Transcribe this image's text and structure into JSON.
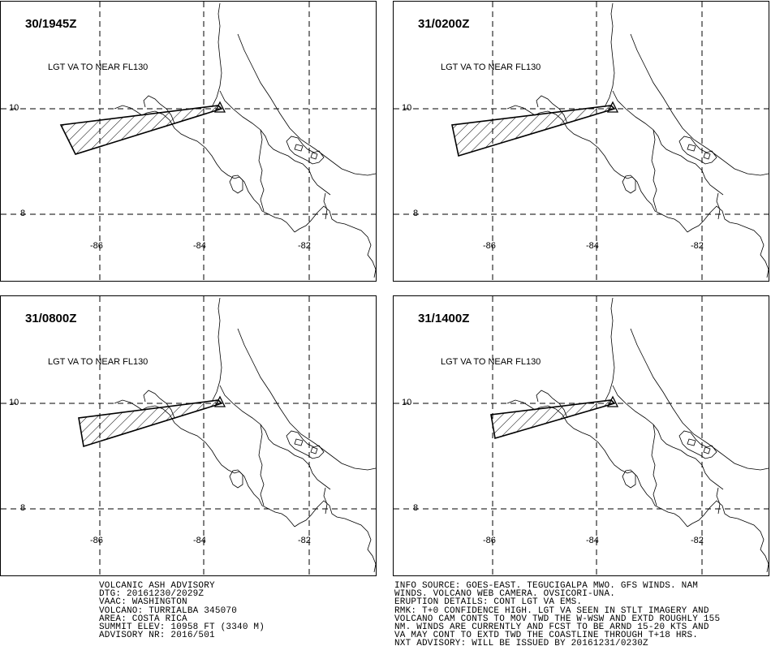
{
  "panels": [
    {
      "time": "30/1945Z",
      "va_text": "LGT VA TO NEAR FL130"
    },
    {
      "time": "31/0200Z",
      "va_text": "LGT VA TO NEAR FL130"
    },
    {
      "time": "31/0800Z",
      "va_text": "LGT VA TO NEAR FL130"
    },
    {
      "time": "31/1400Z",
      "va_text": "LGT VA TO NEAR FL130"
    }
  ],
  "axes": {
    "lat_labels": [
      "10",
      "8"
    ],
    "lon_labels": [
      "-86",
      "-84",
      "-82"
    ]
  },
  "advisory": {
    "lines": [
      "VOLCANIC ASH ADVISORY",
      "DTG: 20161230/2029Z",
      "VAAC: WASHINGTON",
      "VOLCANO: TURRIALBA 345070",
      "AREA: COSTA RICA",
      "SUMMIT ELEV: 10958 FT (3340 M)",
      "ADVISORY NR: 2016/501"
    ]
  },
  "info": {
    "lines": [
      "INFO SOURCE: GOES-EAST. TEGUCIGALPA MWO. GFS WINDS. NAM",
      "WINDS. VOLCANO WEB CAMERA. OVSICORI-UNA.",
      "ERUPTION DETAILS: CONT LGT VA EMS.",
      "RMK: T+0 CONFIDENCE HIGH. LGT VA SEEN IN STLT IMAGERY AND",
      "VOLCANO CAM CONTS TO MOV TWD THE W-WSW AND EXTD ROUGHLY 155",
      "NM. WINDS ARE CURRENTLY AND FCST TO BE ARND 15-20 KTS AND",
      "VA MAY CONT TO EXTD TWD THE COASTLINE THROUGH T+18 HRS.",
      "NXT ADVISORY: WILL BE ISSUED BY 20161231/0230Z"
    ]
  }
}
